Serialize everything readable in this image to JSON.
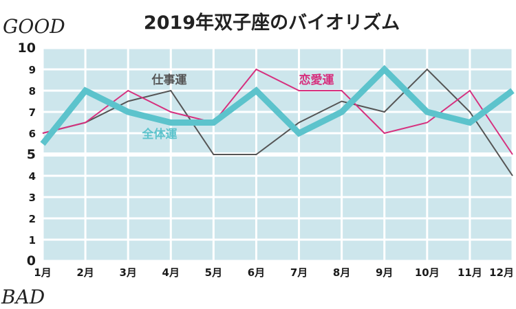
{
  "page": {
    "title": "2019年双子座のバイオリズム",
    "good_label": "GOOD",
    "bad_label": "BAD"
  },
  "colors": {
    "plot_bg": "#cde6ec",
    "grid": "#ffffff",
    "overall": "#5cc3cc",
    "work": "#555555",
    "love": "#d6307e"
  },
  "chart_data": {
    "type": "line",
    "title": "2019年双子座のバイオリズム",
    "categories": [
      "1月",
      "2月",
      "3月",
      "4月",
      "5月",
      "6月",
      "7月",
      "8月",
      "9月",
      "10月",
      "11月",
      "12月"
    ],
    "ylim": [
      0,
      10
    ],
    "yticks": [
      0,
      1,
      2,
      3,
      4,
      5,
      6,
      7,
      8,
      9,
      10
    ],
    "grid": true,
    "series": [
      {
        "name": "全体運",
        "color": "#5cc3cc",
        "values": [
          5.5,
          8,
          7,
          6.5,
          6.5,
          8,
          6,
          7,
          9,
          7,
          6.5,
          8
        ]
      },
      {
        "name": "仕事運",
        "color": "#555555",
        "values": [
          6,
          6.5,
          7.5,
          8,
          5,
          5,
          6.5,
          7.5,
          7,
          9,
          7,
          4
        ]
      },
      {
        "name": "恋愛運",
        "color": "#d6307e",
        "values": [
          6,
          6.5,
          8,
          7,
          6.5,
          9,
          8,
          8,
          6,
          6.5,
          8,
          5
        ]
      }
    ]
  }
}
